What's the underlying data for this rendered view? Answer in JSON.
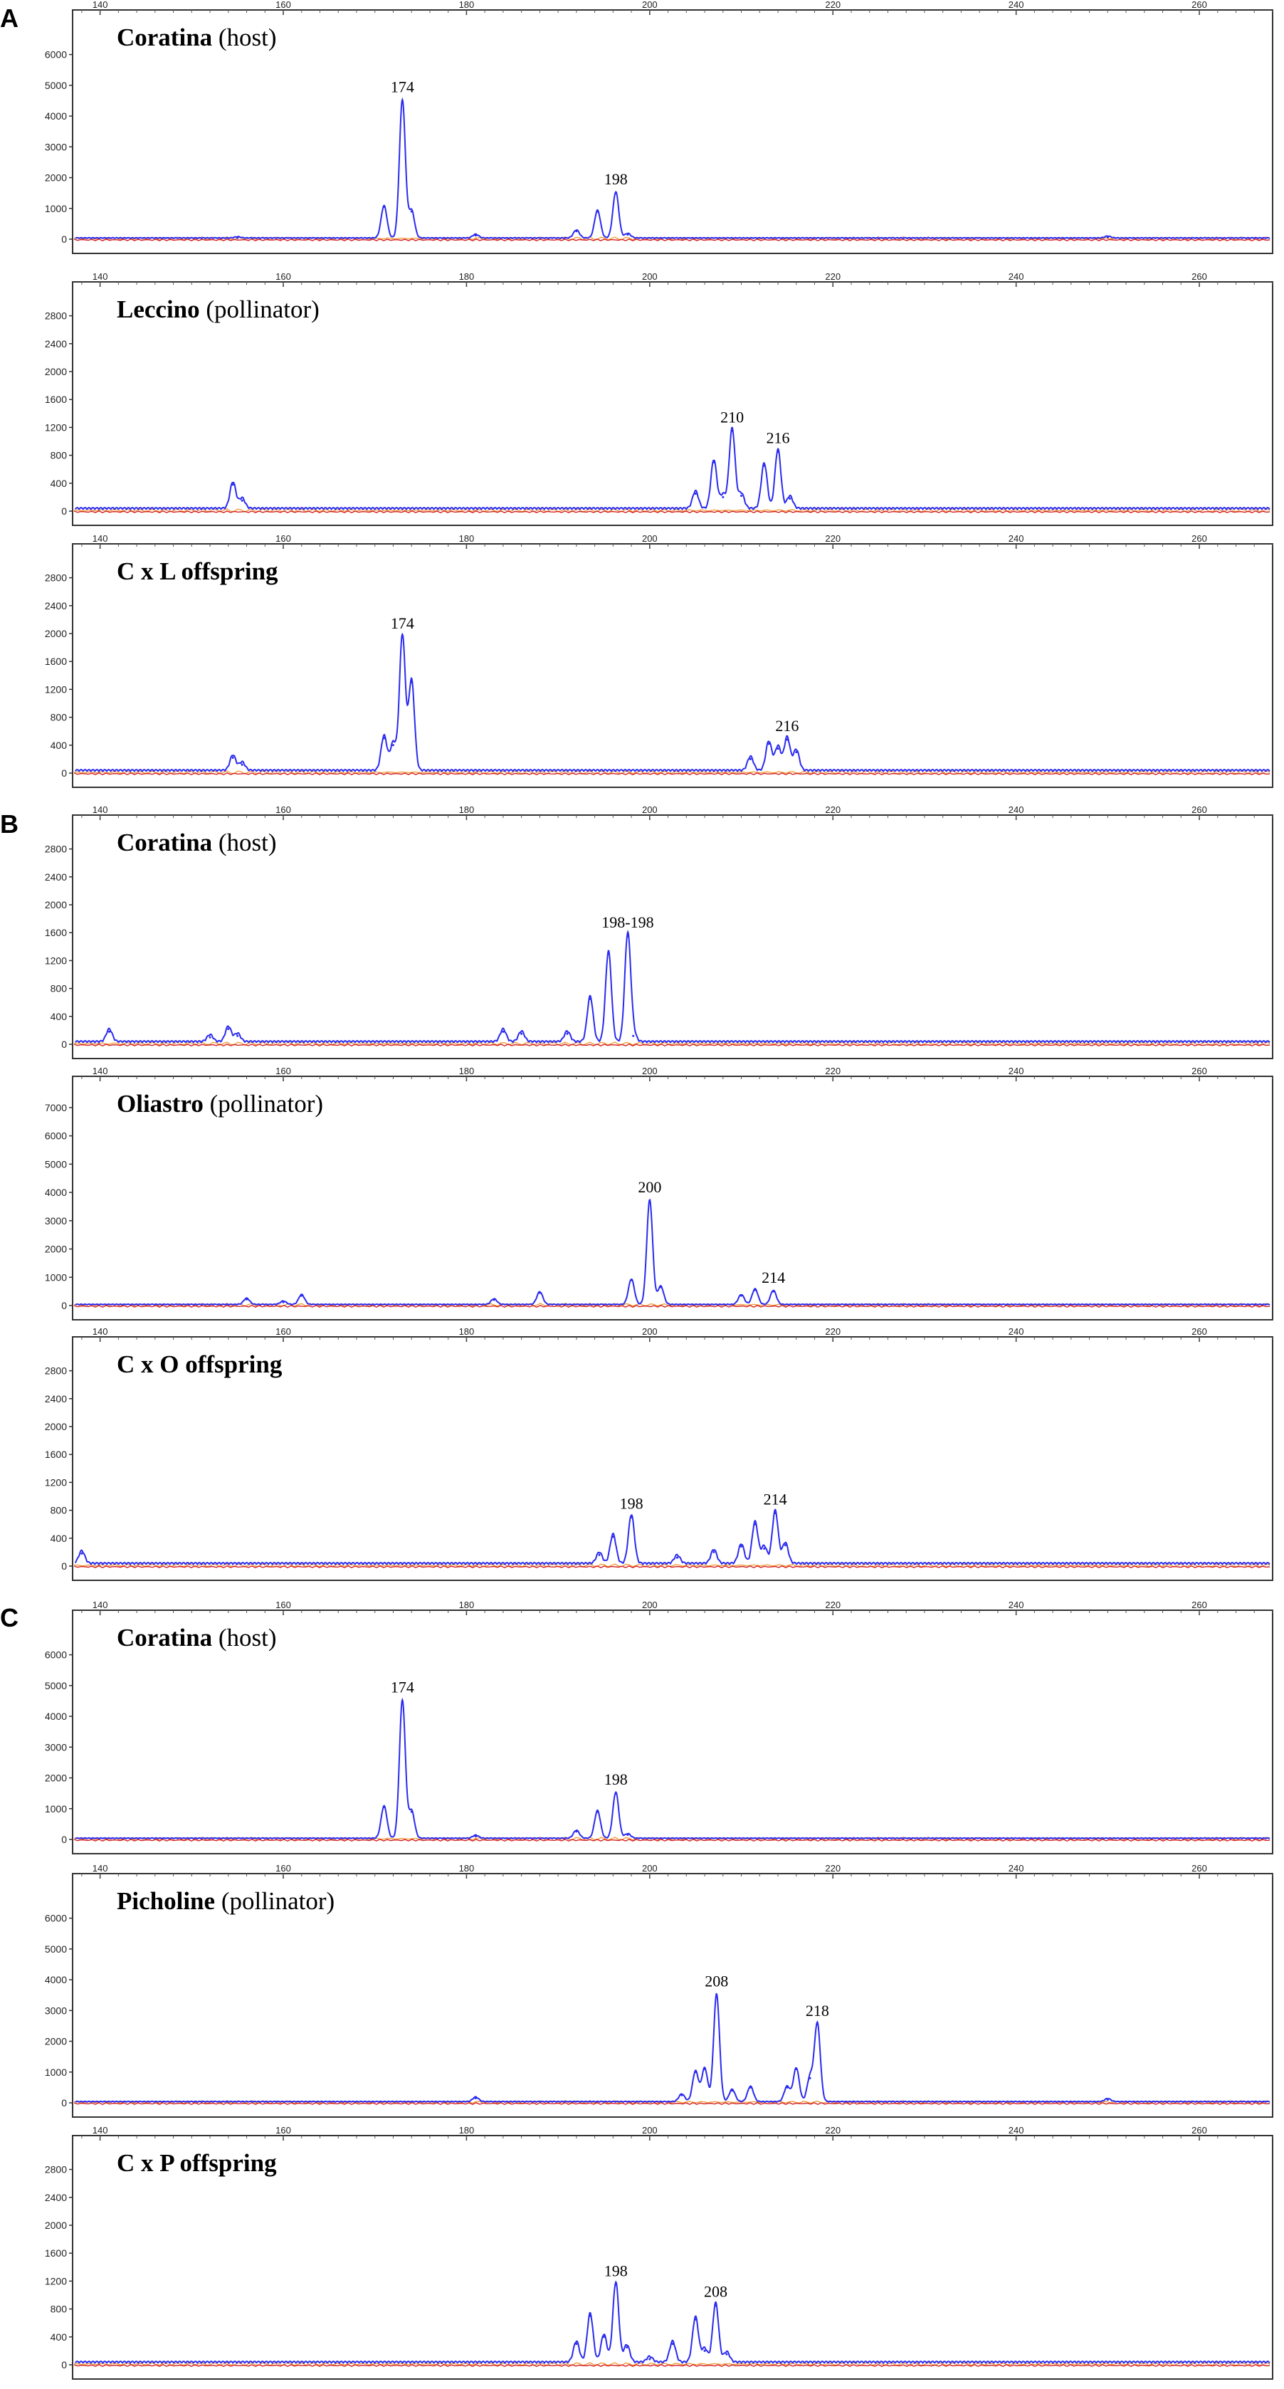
{
  "figure": {
    "sections": [
      "A",
      "B",
      "C"
    ]
  },
  "chart_data": [
    {
      "type": "line",
      "section": "A",
      "title_bold": "Coratina",
      "title_rest": " (host)",
      "xlim": [
        137,
        268
      ],
      "ylim": [
        0,
        6800
      ],
      "x_ticks": [
        140,
        160,
        180,
        200,
        220,
        240,
        260
      ],
      "y_ticks": [
        0,
        1000,
        2000,
        3000,
        4000,
        5000,
        6000
      ],
      "peaks": [
        {
          "x": 155,
          "y": 40
        },
        {
          "x": 171,
          "y": 1050
        },
        {
          "x": 173,
          "y": 4500,
          "label": "174"
        },
        {
          "x": 174,
          "y": 900
        },
        {
          "x": 181,
          "y": 120
        },
        {
          "x": 192,
          "y": 260
        },
        {
          "x": 194.3,
          "y": 900
        },
        {
          "x": 196.3,
          "y": 1500,
          "label": "198"
        },
        {
          "x": 197.6,
          "y": 150
        },
        {
          "x": 250,
          "y": 60
        }
      ]
    },
    {
      "type": "line",
      "section": "A",
      "title_bold": "Leccino",
      "title_rest": " (pollinator)",
      "xlim": [
        137,
        268
      ],
      "ylim": [
        0,
        3000
      ],
      "x_ticks": [
        140,
        160,
        180,
        200,
        220,
        240,
        260
      ],
      "y_ticks": [
        0,
        400,
        800,
        1200,
        1600,
        2000,
        2400,
        2800
      ],
      "peaks": [
        {
          "x": 154.5,
          "y": 380
        },
        {
          "x": 155.5,
          "y": 150
        },
        {
          "x": 205,
          "y": 250
        },
        {
          "x": 207,
          "y": 700
        },
        {
          "x": 208,
          "y": 200
        },
        {
          "x": 209,
          "y": 1150,
          "label": "210"
        },
        {
          "x": 210,
          "y": 220
        },
        {
          "x": 212.5,
          "y": 650
        },
        {
          "x": 214,
          "y": 850,
          "label": "216"
        },
        {
          "x": 215.3,
          "y": 180
        }
      ]
    },
    {
      "type": "line",
      "section": "A",
      "title_bold": "C x L offspring",
      "title_rest": "",
      "xlim": [
        137,
        268
      ],
      "ylim": [
        0,
        3000
      ],
      "x_ticks": [
        140,
        160,
        180,
        200,
        220,
        240,
        260
      ],
      "y_ticks": [
        0,
        400,
        800,
        1200,
        1600,
        2000,
        2400,
        2800
      ],
      "peaks": [
        {
          "x": 154.5,
          "y": 220
        },
        {
          "x": 155.5,
          "y": 120
        },
        {
          "x": 171,
          "y": 500
        },
        {
          "x": 172,
          "y": 400
        },
        {
          "x": 173,
          "y": 1950,
          "label": "174"
        },
        {
          "x": 174,
          "y": 1300
        },
        {
          "x": 211,
          "y": 200
        },
        {
          "x": 213,
          "y": 420
        },
        {
          "x": 214,
          "y": 350
        },
        {
          "x": 215,
          "y": 480,
          "label": "216"
        },
        {
          "x": 216,
          "y": 300
        }
      ]
    },
    {
      "type": "line",
      "section": "B",
      "title_bold": "Coratina",
      "title_rest": " (host)",
      "xlim": [
        137,
        268
      ],
      "ylim": [
        0,
        3000
      ],
      "x_ticks": [
        140,
        160,
        180,
        200,
        220,
        240,
        260
      ],
      "y_ticks": [
        0,
        400,
        800,
        1200,
        1600,
        2000,
        2400,
        2800
      ],
      "peaks": [
        {
          "x": 141,
          "y": 180
        },
        {
          "x": 152,
          "y": 100
        },
        {
          "x": 154,
          "y": 220
        },
        {
          "x": 155,
          "y": 120
        },
        {
          "x": 184,
          "y": 180
        },
        {
          "x": 186,
          "y": 150
        },
        {
          "x": 191,
          "y": 150
        },
        {
          "x": 193.5,
          "y": 650
        },
        {
          "x": 195.5,
          "y": 1300
        },
        {
          "x": 197.6,
          "y": 1550,
          "label": "198-198"
        },
        {
          "x": 198.2,
          "y": 120
        }
      ]
    },
    {
      "type": "line",
      "section": "B",
      "title_bold": "Oliastro",
      "title_rest": " (pollinator)",
      "xlim": [
        137,
        268
      ],
      "ylim": [
        0,
        7400
      ],
      "x_ticks": [
        140,
        160,
        180,
        200,
        220,
        240,
        260
      ],
      "y_ticks": [
        0,
        1000,
        2000,
        3000,
        4000,
        5000,
        6000,
        7000
      ],
      "peaks": [
        {
          "x": 156,
          "y": 220
        },
        {
          "x": 160,
          "y": 120
        },
        {
          "x": 162,
          "y": 350
        },
        {
          "x": 183,
          "y": 200
        },
        {
          "x": 188,
          "y": 450
        },
        {
          "x": 198,
          "y": 900
        },
        {
          "x": 200,
          "y": 3700,
          "label": "200"
        },
        {
          "x": 201.2,
          "y": 650
        },
        {
          "x": 210,
          "y": 350
        },
        {
          "x": 211.5,
          "y": 550
        },
        {
          "x": 213.5,
          "y": 500,
          "label": "214"
        }
      ]
    },
    {
      "type": "line",
      "section": "B",
      "title_bold": "C x O offspring",
      "title_rest": "",
      "xlim": [
        137,
        268
      ],
      "ylim": [
        0,
        3000
      ],
      "x_ticks": [
        140,
        160,
        180,
        200,
        220,
        240,
        260
      ],
      "y_ticks": [
        0,
        400,
        800,
        1200,
        1600,
        2000,
        2400,
        2800
      ],
      "peaks": [
        {
          "x": 138,
          "y": 180
        },
        {
          "x": 194.5,
          "y": 160
        },
        {
          "x": 196,
          "y": 420
        },
        {
          "x": 198,
          "y": 700,
          "label": "198"
        },
        {
          "x": 203,
          "y": 120
        },
        {
          "x": 207,
          "y": 200
        },
        {
          "x": 210,
          "y": 280
        },
        {
          "x": 211.5,
          "y": 600
        },
        {
          "x": 212.5,
          "y": 250
        },
        {
          "x": 213.7,
          "y": 760,
          "label": "214"
        },
        {
          "x": 214.8,
          "y": 300
        }
      ]
    },
    {
      "type": "line",
      "section": "C",
      "title_bold": "Coratina",
      "title_rest": " (host)",
      "xlim": [
        137,
        268
      ],
      "ylim": [
        0,
        6800
      ],
      "x_ticks": [
        140,
        160,
        180,
        200,
        220,
        240,
        260
      ],
      "y_ticks": [
        0,
        1000,
        2000,
        3000,
        4000,
        5000,
        6000
      ],
      "peaks": [
        {
          "x": 171,
          "y": 1050
        },
        {
          "x": 173,
          "y": 4500,
          "label": "174"
        },
        {
          "x": 174,
          "y": 900
        },
        {
          "x": 181,
          "y": 100
        },
        {
          "x": 192,
          "y": 260
        },
        {
          "x": 194.3,
          "y": 900
        },
        {
          "x": 196.3,
          "y": 1500,
          "label": "198"
        },
        {
          "x": 197.6,
          "y": 150
        }
      ]
    },
    {
      "type": "line",
      "section": "C",
      "title_bold": "Picholine",
      "title_rest": " (pollinator)",
      "xlim": [
        137,
        268
      ],
      "ylim": [
        0,
        6800
      ],
      "x_ticks": [
        140,
        160,
        180,
        200,
        220,
        240,
        260
      ],
      "y_ticks": [
        0,
        1000,
        2000,
        3000,
        4000,
        5000,
        6000
      ],
      "peaks": [
        {
          "x": 181,
          "y": 150
        },
        {
          "x": 203.5,
          "y": 250
        },
        {
          "x": 205,
          "y": 1000
        },
        {
          "x": 206,
          "y": 1100
        },
        {
          "x": 207.3,
          "y": 3500,
          "label": "208"
        },
        {
          "x": 209,
          "y": 400
        },
        {
          "x": 211,
          "y": 500
        },
        {
          "x": 215,
          "y": 500
        },
        {
          "x": 216,
          "y": 1100
        },
        {
          "x": 217.5,
          "y": 800
        },
        {
          "x": 218.3,
          "y": 2550,
          "label": "218"
        },
        {
          "x": 250,
          "y": 100
        }
      ]
    },
    {
      "type": "line",
      "section": "C",
      "title_bold": "C x P offspring",
      "title_rest": "",
      "xlim": [
        137,
        268
      ],
      "ylim": [
        0,
        3000
      ],
      "x_ticks": [
        140,
        160,
        180,
        200,
        220,
        240,
        260
      ],
      "y_ticks": [
        0,
        400,
        800,
        1200,
        1600,
        2000,
        2400,
        2800
      ],
      "peaks": [
        {
          "x": 192,
          "y": 300
        },
        {
          "x": 193.5,
          "y": 700
        },
        {
          "x": 195,
          "y": 400
        },
        {
          "x": 196.3,
          "y": 1150,
          "label": "198"
        },
        {
          "x": 197.5,
          "y": 250
        },
        {
          "x": 200,
          "y": 80
        },
        {
          "x": 202.5,
          "y": 300
        },
        {
          "x": 205,
          "y": 650
        },
        {
          "x": 206,
          "y": 200
        },
        {
          "x": 207.2,
          "y": 850,
          "label": "208"
        },
        {
          "x": 208.4,
          "y": 150
        }
      ]
    }
  ]
}
